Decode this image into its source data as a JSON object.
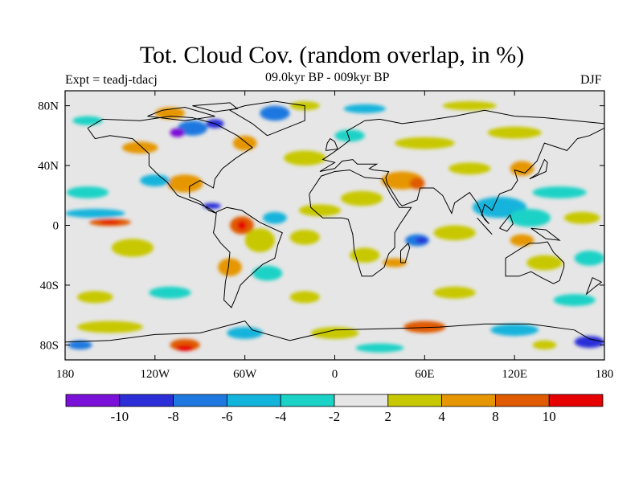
{
  "header": {
    "title": "Tot. Cloud Cov. (random overlap, in %)",
    "experiment": "Expt = teadj-tdacj",
    "period": "09.0kyr BP - 009kyr BP",
    "season": "DJF"
  },
  "axes": {
    "lon_ticks": [
      {
        "lon": -180,
        "label": "180"
      },
      {
        "lon": -120,
        "label": "120W"
      },
      {
        "lon": -60,
        "label": "60W"
      },
      {
        "lon": 0,
        "label": "0"
      },
      {
        "lon": 60,
        "label": "60E"
      },
      {
        "lon": 120,
        "label": "120E"
      },
      {
        "lon": 180,
        "label": "180"
      }
    ],
    "lat_ticks": [
      {
        "lat": 80,
        "label": "80N"
      },
      {
        "lat": 40,
        "label": "40N"
      },
      {
        "lat": 0,
        "label": "0"
      },
      {
        "lat": -40,
        "label": "40S"
      },
      {
        "lat": -80,
        "label": "80S"
      }
    ],
    "lon_range": [
      -180,
      180
    ],
    "lat_range": [
      -90,
      90
    ]
  },
  "colorbar": {
    "colors": [
      "#7b10d8",
      "#2c2ed8",
      "#1f78e0",
      "#12b4dc",
      "#1ad2c6",
      "#e6e6e6",
      "#c8c800",
      "#e69600",
      "#e05a00",
      "#e60000"
    ],
    "labels": [
      "-10",
      "-8",
      "-6",
      "-4",
      "-2",
      "2",
      "4",
      "8",
      "10"
    ]
  },
  "field": {
    "background_color": "#e6e6e6",
    "anomaly_patches": [
      {
        "lon": -150,
        "lat": 2,
        "rx": 14,
        "ry": 2.5,
        "level": 9
      },
      {
        "lon": -150,
        "lat": 2,
        "rx": 7,
        "ry": 1.2,
        "level": 10
      },
      {
        "lon": -160,
        "lat": 8,
        "rx": 20,
        "ry": 3,
        "level": 4
      },
      {
        "lon": -135,
        "lat": -15,
        "rx": 14,
        "ry": 6,
        "level": 7
      },
      {
        "lon": -165,
        "lat": 22,
        "rx": 14,
        "ry": 4,
        "level": 5
      },
      {
        "lon": -100,
        "lat": 28,
        "rx": 12,
        "ry": 6,
        "level": 8
      },
      {
        "lon": -120,
        "lat": 30,
        "rx": 10,
        "ry": 4,
        "level": 4
      },
      {
        "lon": -82,
        "lat": 13,
        "rx": 6,
        "ry": 2,
        "level": 2
      },
      {
        "lon": -62,
        "lat": 0,
        "rx": 8,
        "ry": 6,
        "level": 9
      },
      {
        "lon": -62,
        "lat": 0,
        "rx": 3,
        "ry": 3,
        "level": 10
      },
      {
        "lon": -50,
        "lat": -10,
        "rx": 10,
        "ry": 8,
        "level": 7
      },
      {
        "lon": -40,
        "lat": 5,
        "rx": 8,
        "ry": 4,
        "level": 4
      },
      {
        "lon": -70,
        "lat": -28,
        "rx": 8,
        "ry": 6,
        "level": 8
      },
      {
        "lon": -45,
        "lat": -32,
        "rx": 10,
        "ry": 5,
        "level": 5
      },
      {
        "lon": -20,
        "lat": -8,
        "rx": 10,
        "ry": 5,
        "level": 7
      },
      {
        "lon": -10,
        "lat": 10,
        "rx": 14,
        "ry": 4,
        "level": 7
      },
      {
        "lon": 18,
        "lat": 18,
        "rx": 14,
        "ry": 5,
        "level": 7
      },
      {
        "lon": 45,
        "lat": 30,
        "rx": 14,
        "ry": 6,
        "level": 8
      },
      {
        "lon": 55,
        "lat": 28,
        "rx": 5,
        "ry": 4,
        "level": 9
      },
      {
        "lon": 20,
        "lat": -20,
        "rx": 10,
        "ry": 5,
        "level": 7
      },
      {
        "lon": 55,
        "lat": -10,
        "rx": 8,
        "ry": 4,
        "level": 3
      },
      {
        "lon": 58,
        "lat": -10,
        "rx": 4,
        "ry": 2,
        "level": 2
      },
      {
        "lon": 40,
        "lat": -25,
        "rx": 8,
        "ry": 3,
        "level": 8
      },
      {
        "lon": 80,
        "lat": -5,
        "rx": 14,
        "ry": 5,
        "level": 7
      },
      {
        "lon": 110,
        "lat": 12,
        "rx": 18,
        "ry": 7,
        "level": 4
      },
      {
        "lon": 130,
        "lat": 5,
        "rx": 14,
        "ry": 6,
        "level": 5
      },
      {
        "lon": 125,
        "lat": -10,
        "rx": 8,
        "ry": 4,
        "level": 8
      },
      {
        "lon": 150,
        "lat": 22,
        "rx": 18,
        "ry": 4,
        "level": 5
      },
      {
        "lon": 165,
        "lat": 5,
        "rx": 12,
        "ry": 4,
        "level": 7
      },
      {
        "lon": 140,
        "lat": -25,
        "rx": 12,
        "ry": 5,
        "level": 7
      },
      {
        "lon": 170,
        "lat": -22,
        "rx": 10,
        "ry": 5,
        "level": 5
      },
      {
        "lon": 90,
        "lat": 38,
        "rx": 14,
        "ry": 4,
        "level": 7
      },
      {
        "lon": 125,
        "lat": 38,
        "rx": 8,
        "ry": 5,
        "level": 8
      },
      {
        "lon": 60,
        "lat": 55,
        "rx": 20,
        "ry": 4,
        "level": 7
      },
      {
        "lon": 120,
        "lat": 62,
        "rx": 18,
        "ry": 4,
        "level": 7
      },
      {
        "lon": -95,
        "lat": 65,
        "rx": 10,
        "ry": 5,
        "level": 3
      },
      {
        "lon": -105,
        "lat": 62,
        "rx": 5,
        "ry": 3,
        "level": 1
      },
      {
        "lon": -80,
        "lat": 68,
        "rx": 6,
        "ry": 3,
        "level": 2
      },
      {
        "lon": -110,
        "lat": 75,
        "rx": 10,
        "ry": 4,
        "level": 8
      },
      {
        "lon": -60,
        "lat": 55,
        "rx": 8,
        "ry": 5,
        "level": 8
      },
      {
        "lon": -40,
        "lat": 75,
        "rx": 10,
        "ry": 5,
        "level": 3
      },
      {
        "lon": -20,
        "lat": 80,
        "rx": 10,
        "ry": 3,
        "level": 7
      },
      {
        "lon": 20,
        "lat": 78,
        "rx": 14,
        "ry": 3,
        "level": 4
      },
      {
        "lon": 90,
        "lat": 80,
        "rx": 18,
        "ry": 3,
        "level": 7
      },
      {
        "lon": -165,
        "lat": 70,
        "rx": 10,
        "ry": 3,
        "level": 5
      },
      {
        "lon": -130,
        "lat": 52,
        "rx": 12,
        "ry": 4,
        "level": 8
      },
      {
        "lon": -20,
        "lat": 45,
        "rx": 14,
        "ry": 5,
        "level": 7
      },
      {
        "lon": 10,
        "lat": 60,
        "rx": 10,
        "ry": 4,
        "level": 5
      },
      {
        "lon": -160,
        "lat": -48,
        "rx": 12,
        "ry": 4,
        "level": 7
      },
      {
        "lon": -110,
        "lat": -45,
        "rx": 14,
        "ry": 4,
        "level": 5
      },
      {
        "lon": -20,
        "lat": -48,
        "rx": 10,
        "ry": 4,
        "level": 7
      },
      {
        "lon": 80,
        "lat": -45,
        "rx": 14,
        "ry": 4,
        "level": 7
      },
      {
        "lon": 160,
        "lat": -50,
        "rx": 14,
        "ry": 4,
        "level": 5
      },
      {
        "lon": -150,
        "lat": -68,
        "rx": 22,
        "ry": 4,
        "level": 7
      },
      {
        "lon": -100,
        "lat": -80,
        "rx": 10,
        "ry": 4,
        "level": 9
      },
      {
        "lon": -100,
        "lat": -82,
        "rx": 6,
        "ry": 2,
        "level": 10
      },
      {
        "lon": -60,
        "lat": -72,
        "rx": 12,
        "ry": 4,
        "level": 4
      },
      {
        "lon": 0,
        "lat": -72,
        "rx": 16,
        "ry": 4,
        "level": 7
      },
      {
        "lon": 60,
        "lat": -68,
        "rx": 14,
        "ry": 4,
        "level": 9
      },
      {
        "lon": 120,
        "lat": -70,
        "rx": 16,
        "ry": 4,
        "level": 4
      },
      {
        "lon": 170,
        "lat": -78,
        "rx": 10,
        "ry": 4,
        "level": 2
      },
      {
        "lon": -170,
        "lat": -80,
        "rx": 8,
        "ry": 3,
        "level": 3
      },
      {
        "lon": 140,
        "lat": -80,
        "rx": 8,
        "ry": 3,
        "level": 7
      },
      {
        "lon": 30,
        "lat": -82,
        "rx": 16,
        "ry": 3,
        "level": 5
      }
    ]
  }
}
